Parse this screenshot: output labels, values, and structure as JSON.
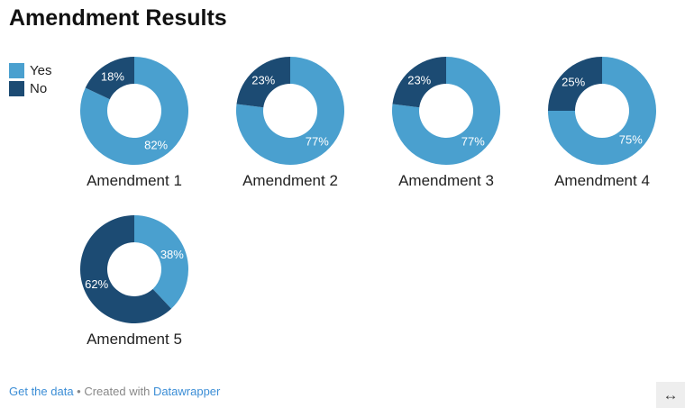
{
  "title": "Amendment Results",
  "legend": [
    {
      "label": "Yes",
      "color": "#4aa0cf"
    },
    {
      "label": "No",
      "color": "#1c4b73"
    }
  ],
  "chart_data": {
    "type": "pie",
    "variant": "donut",
    "series_names": [
      "Yes",
      "No"
    ],
    "colors": {
      "Yes": "#4aa0cf",
      "No": "#1c4b73"
    },
    "charts": [
      {
        "label": "Amendment 1",
        "yes": 82,
        "no": 18
      },
      {
        "label": "Amendment 2",
        "yes": 77,
        "no": 23
      },
      {
        "label": "Amendment 3",
        "yes": 77,
        "no": 23
      },
      {
        "label": "Amendment 4",
        "yes": 75,
        "no": 25
      },
      {
        "label": "Amendment 5",
        "yes": 38,
        "no": 62
      }
    ]
  },
  "footer": {
    "get_data": "Get the data",
    "separator": " • Created with ",
    "datawrapper": "Datawrapper"
  },
  "expand_icon": "↔"
}
